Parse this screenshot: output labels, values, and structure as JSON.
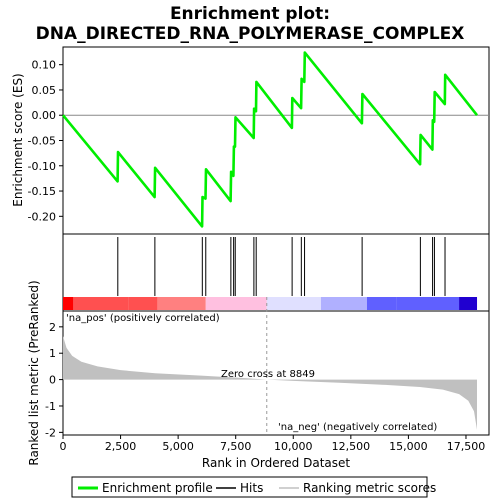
{
  "chart_data": {
    "type": "line",
    "title": "Enrichment plot: DNA_DIRECTED_RNA_POLYMERASE_COMPLEX",
    "title_line1": "Enrichment plot:",
    "title_line2": "DNA_DIRECTED_RNA_POLYMERASE_COMPLEX",
    "es_panel": {
      "ylabel": "Enrichment score (ES)",
      "ylim": [
        -0.235,
        0.135
      ],
      "yticks": [
        0.1,
        0.05,
        0.0,
        -0.05,
        -0.1,
        -0.15,
        -0.2
      ],
      "ytick_labels": [
        "0.10",
        "0.05",
        "0.00",
        "-0.05",
        "-0.10",
        "-0.15",
        "-0.20"
      ],
      "zero_line": 0.0,
      "line_color": "#00ee00",
      "points": [
        [
          0,
          0.0
        ],
        [
          2370,
          -0.131
        ],
        [
          2390,
          -0.073
        ],
        [
          3980,
          -0.162
        ],
        [
          4000,
          -0.104
        ],
        [
          6040,
          -0.22
        ],
        [
          6060,
          -0.162
        ],
        [
          6190,
          -0.165
        ],
        [
          6210,
          -0.107
        ],
        [
          7280,
          -0.17
        ],
        [
          7300,
          -0.112
        ],
        [
          7400,
          -0.12
        ],
        [
          7420,
          -0.062
        ],
        [
          7470,
          -0.062
        ],
        [
          7490,
          -0.004
        ],
        [
          8280,
          -0.045
        ],
        [
          8300,
          0.013
        ],
        [
          8380,
          0.008
        ],
        [
          8400,
          0.066
        ],
        [
          9940,
          -0.025
        ],
        [
          9960,
          0.034
        ],
        [
          10340,
          0.014
        ],
        [
          10360,
          0.072
        ],
        [
          10480,
          0.066
        ],
        [
          10500,
          0.124
        ],
        [
          12980,
          -0.016
        ],
        [
          13000,
          0.042
        ],
        [
          15510,
          -0.097
        ],
        [
          15530,
          -0.039
        ],
        [
          16040,
          -0.068
        ],
        [
          16060,
          -0.01
        ],
        [
          16120,
          -0.013
        ],
        [
          16140,
          0.046
        ],
        [
          16580,
          0.022
        ],
        [
          16600,
          0.08
        ],
        [
          17980,
          0.0
        ]
      ]
    },
    "hits": [
      2380,
      3990,
      6050,
      6200,
      7290,
      7410,
      7480,
      8290,
      8390,
      9950,
      10350,
      10490,
      12990,
      15520,
      16050,
      16130,
      16590
    ],
    "rank_bar": {
      "colors": [
        "#ff0000",
        "#ff5050",
        "#ff8080",
        "#ffc0e0",
        "#e0e0ff",
        "#b0b0ff",
        "#6060ff",
        "#2000d0"
      ],
      "segments": [
        {
          "from": 0,
          "to": 450,
          "color_index": 0
        },
        {
          "from": 450,
          "to": 2850,
          "color_index": 1
        },
        {
          "from": 2850,
          "to": 4100,
          "color_index": 1
        },
        {
          "from": 4100,
          "to": 6200,
          "color_index": 2
        },
        {
          "from": 6200,
          "to": 8849,
          "color_index": 3
        },
        {
          "from": 8849,
          "to": 11200,
          "color_index": 4
        },
        {
          "from": 11200,
          "to": 13200,
          "color_index": 5
        },
        {
          "from": 13200,
          "to": 14500,
          "color_index": 6
        },
        {
          "from": 14500,
          "to": 17200,
          "color_index": 6
        },
        {
          "from": 17200,
          "to": 17980,
          "color_index": 7
        }
      ]
    },
    "metric_panel": {
      "ylabel": "Ranked list metric (PreRanked)",
      "ylim": [
        -2.1,
        2.6
      ],
      "yticks": [
        2,
        1,
        0,
        -1,
        -2
      ],
      "ytick_labels": [
        "2",
        "1",
        "0",
        "-1",
        "-2"
      ],
      "fill_color": "#c0c0c0",
      "curve": [
        [
          0,
          1.65
        ],
        [
          150,
          1.2
        ],
        [
          400,
          0.9
        ],
        [
          800,
          0.68
        ],
        [
          1500,
          0.5
        ],
        [
          2500,
          0.36
        ],
        [
          4000,
          0.24
        ],
        [
          6000,
          0.15
        ],
        [
          8000,
          0.05
        ],
        [
          8849,
          0.0
        ],
        [
          10000,
          -0.05
        ],
        [
          12000,
          -0.12
        ],
        [
          14000,
          -0.2
        ],
        [
          15500,
          -0.28
        ],
        [
          16500,
          -0.38
        ],
        [
          17200,
          -0.55
        ],
        [
          17600,
          -0.8
        ],
        [
          17850,
          -1.2
        ],
        [
          17980,
          -1.9
        ]
      ],
      "pos_label": "'na_pos' (positively correlated)",
      "neg_label": "'na_neg' (negatively correlated)",
      "pos_color": "#cc0000",
      "neg_color": "#0000cc",
      "zero_cross_label": "Zero cross at 8849",
      "zero_cross": 8849
    },
    "xlabel": "Rank in Ordered Dataset",
    "xlim": [
      0,
      18500
    ],
    "xticks": [
      0,
      2500,
      5000,
      7500,
      10000,
      12500,
      15000,
      17500
    ],
    "xtick_labels": [
      "0",
      "2,500",
      "5,000",
      "7,500",
      "10,000",
      "12,500",
      "15,000",
      "17,500"
    ],
    "legend": {
      "placement": "bottom",
      "entries": [
        {
          "label": "Enrichment profile",
          "kind": "line",
          "color": "#00ee00"
        },
        {
          "label": "Hits",
          "kind": "line",
          "color": "#000000"
        },
        {
          "label": "Ranking metric scores",
          "kind": "line",
          "color": "#c0c0c0"
        }
      ]
    }
  }
}
